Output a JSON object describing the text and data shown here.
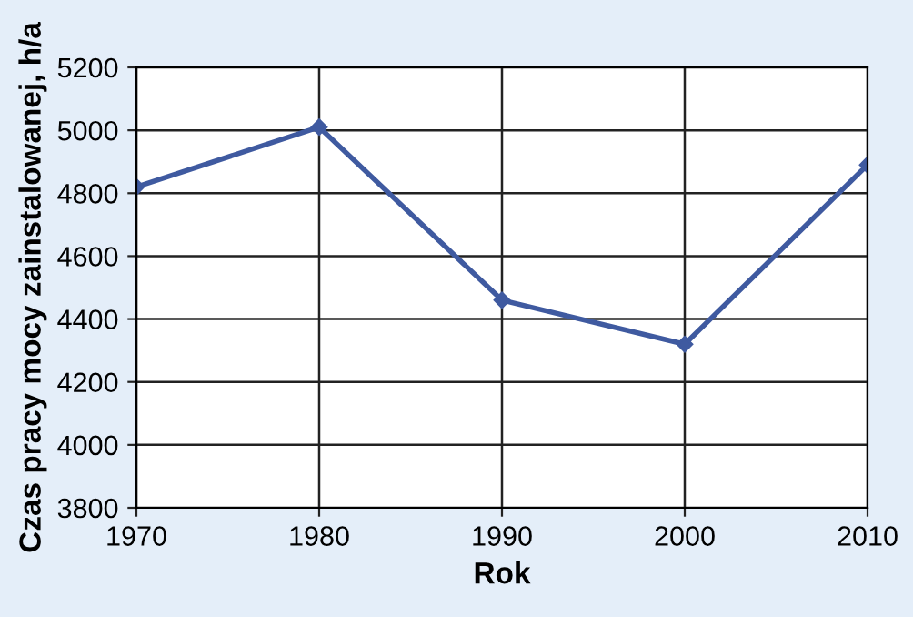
{
  "chart_data": {
    "type": "line",
    "xlabel": "Rok",
    "ylabel": "Czas pracy mocy zainstalowanej, h/a",
    "x": [
      1970,
      1980,
      1990,
      2000,
      2010
    ],
    "series": [
      {
        "color": "#3f5aa0",
        "values": [
          4820,
          5010,
          4460,
          4320,
          4890
        ]
      }
    ],
    "xlim": [
      1970,
      2010
    ],
    "xticks": [
      1970,
      1980,
      1990,
      2000,
      2010
    ],
    "ylim": [
      3800,
      5200
    ],
    "yticks": [
      3800,
      4000,
      4200,
      4400,
      4600,
      4800,
      5000,
      5200
    ],
    "grid": true,
    "marker": "diamond",
    "line_style": "solid",
    "legend": false
  }
}
